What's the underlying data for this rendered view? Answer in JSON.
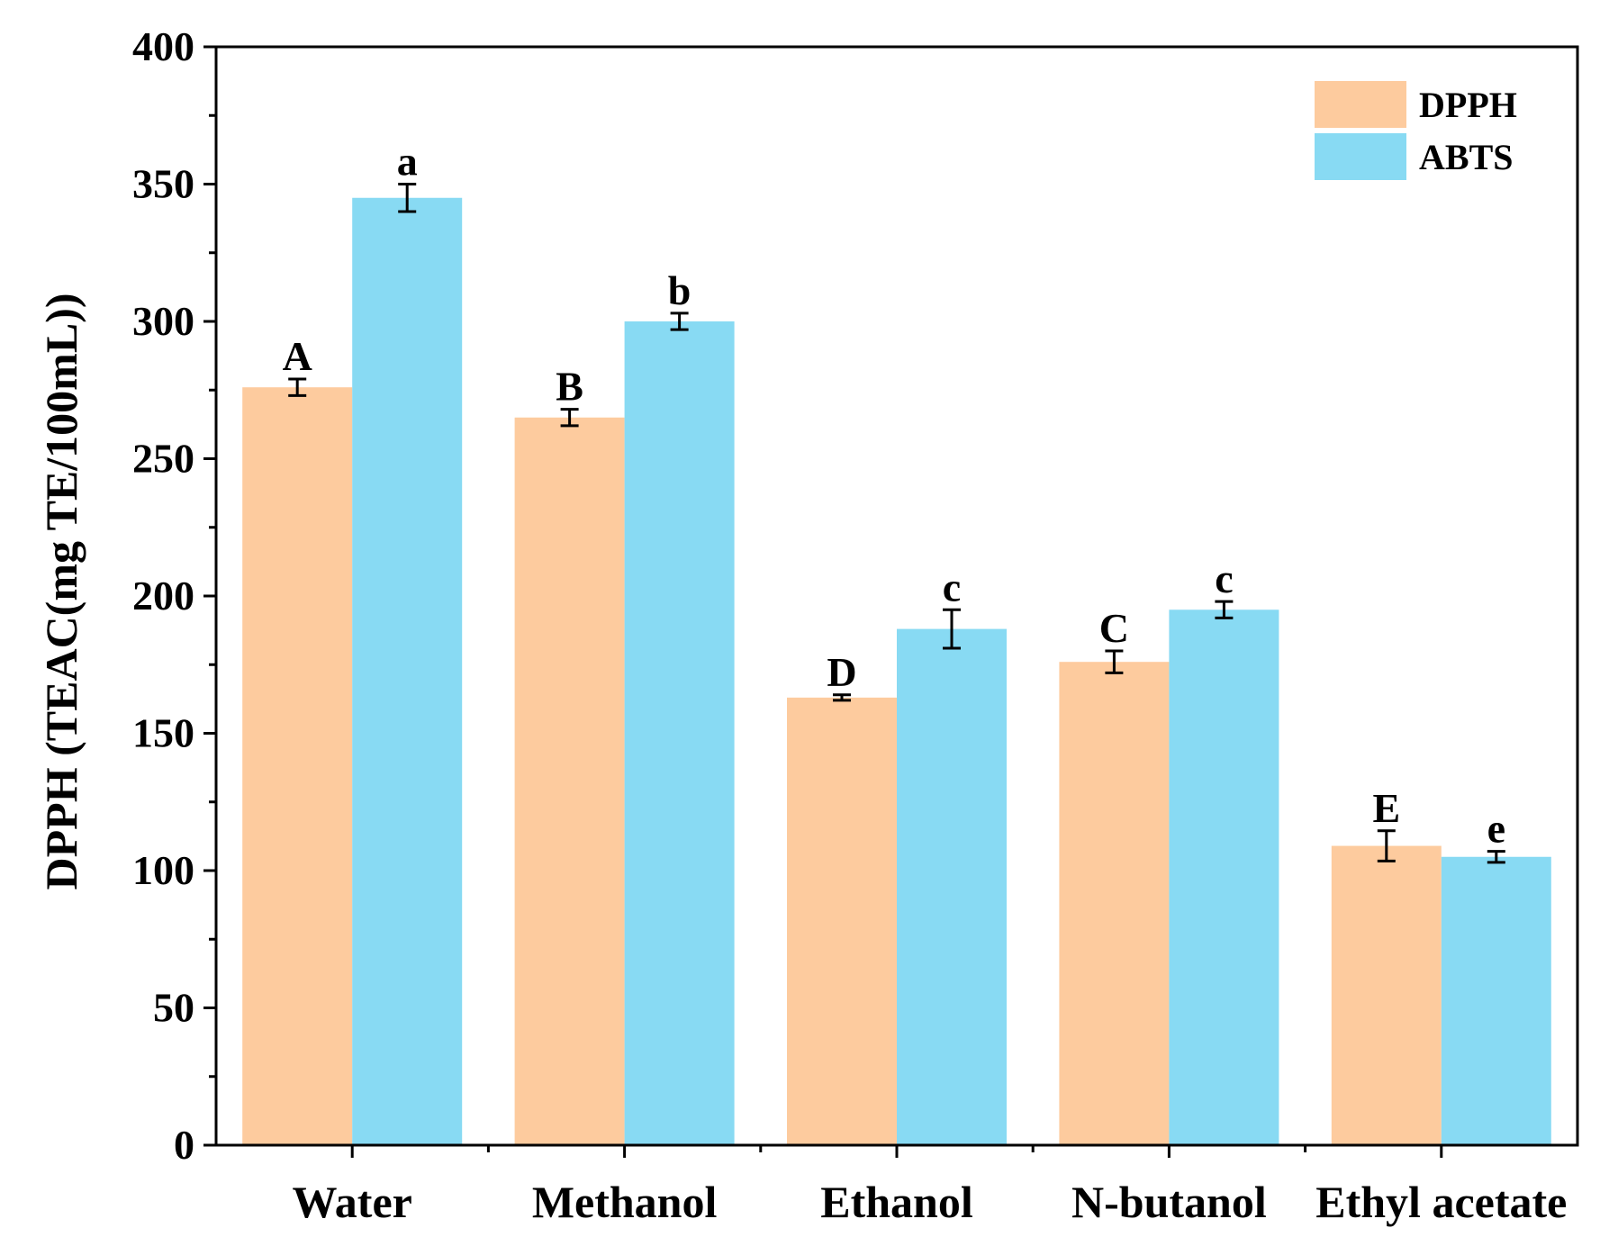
{
  "chart_data": {
    "type": "bar",
    "title": "",
    "xlabel": "",
    "ylabel": "DPPH (TEAC(mg TE/100mL))",
    "ylim": [
      0,
      400
    ],
    "yticks": [
      0,
      50,
      100,
      150,
      200,
      250,
      300,
      350,
      400
    ],
    "categories": [
      "Water",
      "Methanol",
      "Ethanol",
      "N-butanol",
      "Ethyl acetate"
    ],
    "legend_position": "top-right",
    "series": [
      {
        "name": "DPPH",
        "color": "#FDCB9E",
        "values": [
          276,
          265,
          163,
          176,
          109
        ],
        "errors": [
          3,
          3,
          1,
          4,
          5.5
        ],
        "significance": [
          "A",
          "B",
          "D",
          "C",
          "E"
        ]
      },
      {
        "name": "ABTS",
        "color": "#88DAF3",
        "values": [
          345,
          300,
          188,
          195,
          105
        ],
        "errors": [
          5,
          3,
          7,
          3,
          2
        ],
        "significance": [
          "a",
          "b",
          "c",
          "c",
          "e"
        ]
      }
    ]
  }
}
